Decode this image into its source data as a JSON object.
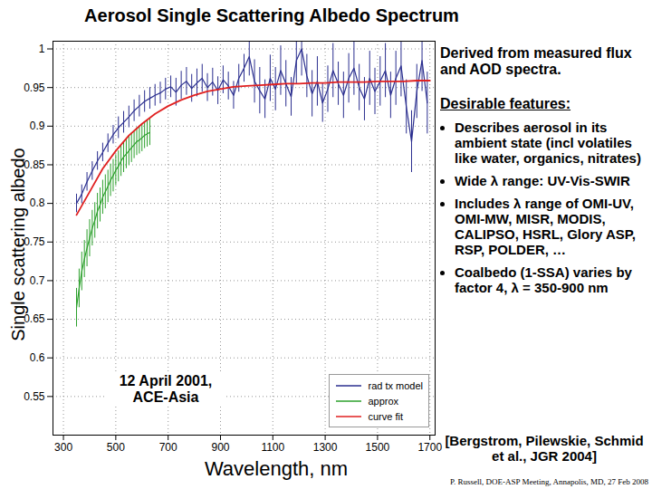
{
  "chart_data": {
    "type": "line",
    "title": "Aerosol Single Scattering Albedo Spectrum",
    "x_label": "Wavelength, nm",
    "y_label": "Single scattering albedo",
    "annotation": "12 April 2001, ACE-Asia",
    "notes": {
      "derived": "Derived from measured flux and AOD spectra.",
      "heading": "Desirable features:",
      "bullets": [
        "Describes aerosol in its ambient state (incl volatiles like water, organics, nitrates)",
        "Wide λ range: UV-Vis-SWIR",
        "Includes λ range of OMI-UV, OMI-MW, MISR, MODIS, CALIPSO, HSRL, Glory ASP, RSP, POLDER, …",
        "Coalbedo (1-SSA) varies by factor 4, λ = 350-900 nm"
      ],
      "citation": "[Bergstrom, Pilewskie, Schmid et al., JGR 2004]",
      "credit": "P. Russell, DOE-ASP Meeting, Annapolis, MD, 27 Feb 2008"
    },
    "xlim": [
      260,
      1720
    ],
    "xticks": [
      300,
      500,
      700,
      900,
      1100,
      1300,
      1500,
      1700
    ],
    "ylim": [
      0.5,
      1.01
    ],
    "yticks": [
      0.55,
      0.6,
      0.65,
      0.7,
      0.75,
      0.8,
      0.85,
      0.9,
      0.95,
      1
    ],
    "grid": true,
    "legend": "lower right",
    "series": [
      {
        "name": "rad tx model",
        "color": "#2b2f8f",
        "x": [
          350,
          370,
          390,
          410,
          430,
          450,
          470,
          490,
          510,
          530,
          550,
          570,
          590,
          610,
          630,
          650,
          670,
          690,
          710,
          730,
          750,
          770,
          790,
          810,
          830,
          850,
          870,
          890,
          910,
          930,
          950,
          970,
          990,
          1010,
          1030,
          1050,
          1070,
          1090,
          1110,
          1130,
          1150,
          1170,
          1190,
          1210,
          1230,
          1250,
          1270,
          1290,
          1310,
          1330,
          1350,
          1370,
          1390,
          1410,
          1430,
          1450,
          1470,
          1490,
          1510,
          1530,
          1550,
          1570,
          1590,
          1610,
          1630,
          1650,
          1670,
          1690
        ],
        "values": [
          0.8,
          0.812,
          0.828,
          0.842,
          0.855,
          0.866,
          0.878,
          0.889,
          0.898,
          0.905,
          0.912,
          0.92,
          0.926,
          0.932,
          0.936,
          0.94,
          0.943,
          0.948,
          0.951,
          0.944,
          0.953,
          0.958,
          0.949,
          0.956,
          0.962,
          0.95,
          0.957,
          0.946,
          0.96,
          0.952,
          0.94,
          0.962,
          0.975,
          0.99,
          0.958,
          0.946,
          0.935,
          0.962,
          0.948,
          0.972,
          0.955,
          0.938,
          0.985,
          1.0,
          0.965,
          0.942,
          0.958,
          0.93,
          0.948,
          0.972,
          0.955,
          0.94,
          0.962,
          0.975,
          0.95,
          0.935,
          0.962,
          0.945,
          0.958,
          0.972,
          0.94,
          0.962,
          0.978,
          0.925,
          0.88,
          0.945,
          0.985,
          0.93
        ],
        "errors": [
          0.012,
          0.012,
          0.012,
          0.012,
          0.012,
          0.012,
          0.012,
          0.012,
          0.014,
          0.014,
          0.014,
          0.014,
          0.014,
          0.014,
          0.014,
          0.014,
          0.014,
          0.014,
          0.014,
          0.018,
          0.018,
          0.018,
          0.018,
          0.018,
          0.018,
          0.018,
          0.018,
          0.018,
          0.018,
          0.018,
          0.018,
          0.018,
          0.018,
          0.025,
          0.028,
          0.03,
          0.025,
          0.03,
          0.028,
          0.032,
          0.03,
          0.025,
          0.03,
          0.035,
          0.028,
          0.03,
          0.032,
          0.025,
          0.03,
          0.035,
          0.028,
          0.03,
          0.032,
          0.035,
          0.03,
          0.028,
          0.035,
          0.03,
          0.032,
          0.035,
          0.03,
          0.035,
          0.04,
          0.035,
          0.04,
          0.035,
          0.04,
          0.04
        ]
      },
      {
        "name": "approx",
        "color": "#2ca02c",
        "x": [
          350,
          360,
          370,
          380,
          390,
          400,
          410,
          420,
          430,
          440,
          450,
          460,
          470,
          480,
          490,
          500,
          510,
          520,
          530,
          540,
          550,
          560,
          570,
          580,
          590,
          600,
          610,
          620,
          630
        ],
        "values": [
          0.665,
          0.69,
          0.712,
          0.728,
          0.742,
          0.755,
          0.768,
          0.778,
          0.79,
          0.798,
          0.808,
          0.815,
          0.822,
          0.83,
          0.836,
          0.843,
          0.848,
          0.855,
          0.86,
          0.864,
          0.868,
          0.872,
          0.876,
          0.88,
          0.882,
          0.885,
          0.888,
          0.89,
          0.892
        ],
        "errors": [
          0.025,
          0.025,
          0.025,
          0.024,
          0.024,
          0.024,
          0.023,
          0.023,
          0.023,
          0.022,
          0.022,
          0.022,
          0.021,
          0.021,
          0.021,
          0.02,
          0.02,
          0.02,
          0.02,
          0.019,
          0.019,
          0.019,
          0.018,
          0.018,
          0.018,
          0.018,
          0.017,
          0.017,
          0.017
        ]
      },
      {
        "name": "curve fit",
        "color": "#e02020",
        "x": [
          350,
          400,
          450,
          500,
          550,
          600,
          650,
          700,
          750,
          800,
          850,
          900,
          950,
          1000,
          1050,
          1100,
          1150,
          1200,
          1250,
          1300,
          1350,
          1400,
          1450,
          1500,
          1550,
          1600,
          1650,
          1700
        ],
        "values": [
          0.785,
          0.815,
          0.845,
          0.868,
          0.888,
          0.903,
          0.916,
          0.926,
          0.934,
          0.94,
          0.945,
          0.948,
          0.951,
          0.952,
          0.953,
          0.954,
          0.955,
          0.955,
          0.956,
          0.956,
          0.957,
          0.957,
          0.957,
          0.958,
          0.958,
          0.958,
          0.959,
          0.959
        ]
      }
    ]
  }
}
